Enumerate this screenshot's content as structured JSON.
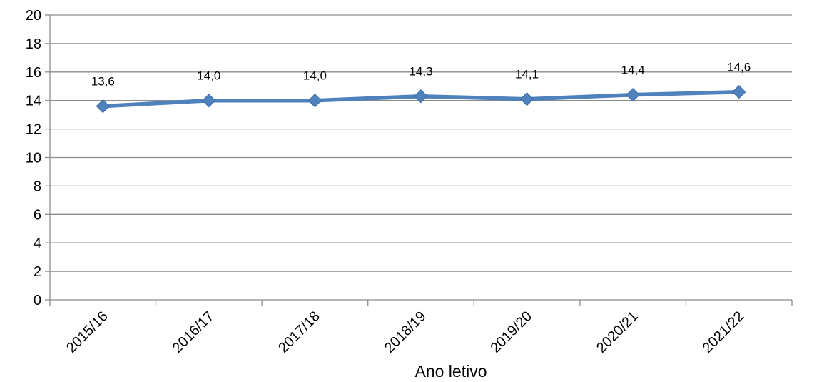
{
  "chart_data": {
    "type": "line",
    "title": "",
    "xlabel": "Ano letivo",
    "ylabel": "",
    "categories": [
      "2015/16",
      "2016/17",
      "2017/18",
      "2018/19",
      "2019/20",
      "2020/21",
      "2021/22"
    ],
    "series": [
      {
        "values": [
          13.6,
          14.0,
          14.0,
          14.3,
          14.1,
          14.4,
          14.6
        ],
        "data_labels": [
          "13,6",
          "14,0",
          "14,0",
          "14,3",
          "14,1",
          "14,4",
          "14,6"
        ],
        "color": "#4F81BD",
        "marker": "diamond"
      }
    ],
    "ylim": [
      0,
      20
    ],
    "yticks": [
      0,
      2,
      4,
      6,
      8,
      10,
      12,
      14,
      16,
      18,
      20
    ],
    "grid": true,
    "legend": "none"
  }
}
